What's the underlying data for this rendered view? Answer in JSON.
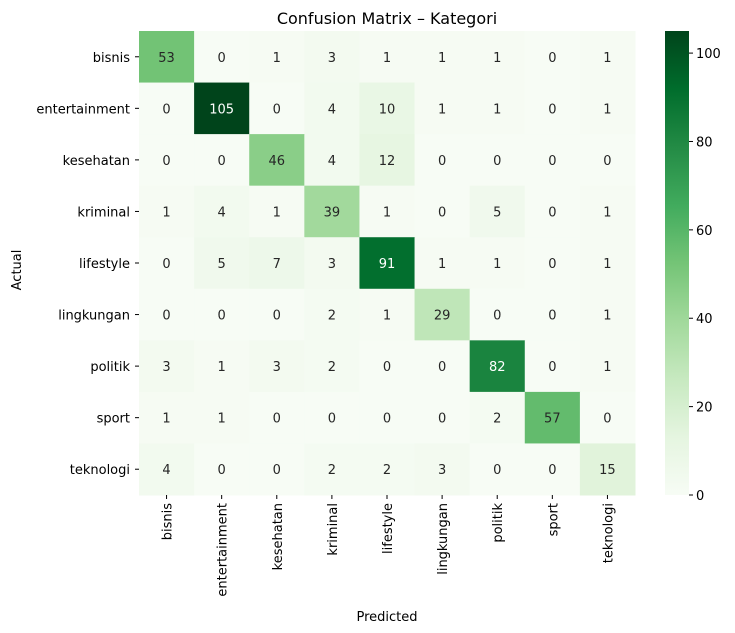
{
  "chart_data": {
    "type": "heatmap",
    "title": "Confusion Matrix – Kategori",
    "xlabel": "Predicted",
    "ylabel": "Actual",
    "x_categories": [
      "bisnis",
      "entertainment",
      "kesehatan",
      "kriminal",
      "lifestyle",
      "lingkungan",
      "politik",
      "sport",
      "teknologi"
    ],
    "y_categories": [
      "bisnis",
      "entertainment",
      "kesehatan",
      "kriminal",
      "lifestyle",
      "lingkungan",
      "politik",
      "sport",
      "teknologi"
    ],
    "values": [
      [
        53,
        0,
        1,
        3,
        1,
        1,
        1,
        0,
        1
      ],
      [
        0,
        105,
        0,
        4,
        10,
        1,
        1,
        0,
        1
      ],
      [
        0,
        0,
        46,
        4,
        12,
        0,
        0,
        0,
        0
      ],
      [
        1,
        4,
        1,
        39,
        1,
        0,
        5,
        0,
        1
      ],
      [
        0,
        5,
        7,
        3,
        91,
        1,
        1,
        0,
        1
      ],
      [
        0,
        0,
        0,
        2,
        1,
        29,
        0,
        0,
        1
      ],
      [
        3,
        1,
        3,
        2,
        0,
        0,
        82,
        0,
        1
      ],
      [
        1,
        1,
        0,
        0,
        0,
        0,
        2,
        57,
        0
      ],
      [
        4,
        0,
        0,
        2,
        2,
        3,
        0,
        0,
        15
      ]
    ],
    "colormap": "Greens",
    "colorbar": {
      "range": [
        0,
        105
      ],
      "ticks": [
        0,
        20,
        40,
        60,
        80,
        100
      ]
    }
  }
}
